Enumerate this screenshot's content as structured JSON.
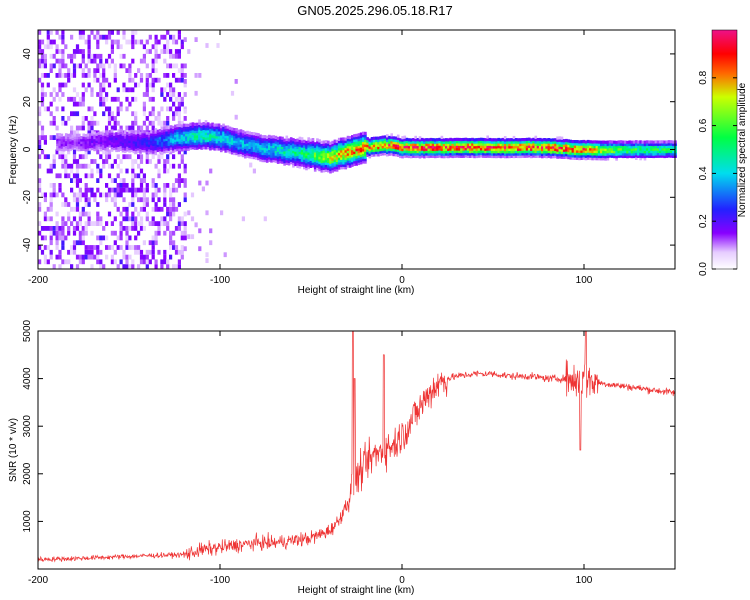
{
  "title": "GN05.2025.296.05.18.R17",
  "chart_data": [
    {
      "type": "heatmap",
      "xlabel": "Height of straight line (km)",
      "ylabel": "Frequency (Hz)",
      "xlim": [
        -200,
        150
      ],
      "ylim": [
        -50,
        50
      ],
      "xticks": [
        -200,
        -100,
        0,
        100
      ],
      "yticks": [
        -40,
        -20,
        0,
        20,
        40
      ],
      "colorbar": {
        "label": "Normalized spectral amplitude",
        "range": [
          0,
          1
        ],
        "ticks": [
          "0.0",
          "0.2",
          "0.4",
          "0.6",
          "0.8"
        ],
        "tick_values": [
          0.0,
          0.2,
          0.4,
          0.6,
          0.8
        ],
        "colormap": "white-violet-blue-cyan-green-yellow-red-magenta"
      },
      "ridge": {
        "x": [
          -180,
          -160,
          -140,
          -125,
          -110,
          -100,
          -90,
          -80,
          -70,
          -60,
          -50,
          -40,
          -35,
          -30,
          -25,
          -20,
          -10,
          0,
          10,
          20,
          40,
          60,
          80,
          100,
          120,
          150
        ],
        "freq": [
          3,
          4,
          3,
          5,
          6,
          5,
          3,
          1,
          0,
          -1,
          -2,
          -3,
          -2,
          -1,
          0,
          1,
          2,
          1,
          1,
          1,
          1,
          1,
          1,
          0,
          0,
          0
        ],
        "amplitude": [
          0.15,
          0.2,
          0.25,
          0.4,
          0.5,
          0.45,
          0.4,
          0.4,
          0.45,
          0.5,
          0.6,
          0.75,
          0.8,
          0.85,
          0.88,
          0.9,
          0.92,
          0.94,
          0.95,
          0.95,
          0.95,
          0.95,
          0.95,
          0.9,
          0.6,
          0.55
        ]
      },
      "noise_region_x": [
        -200,
        -120
      ]
    },
    {
      "type": "line",
      "xlabel": "Height of straight line (km)",
      "ylabel": "SNR (10 * v/v)",
      "xlim": [
        -200,
        150
      ],
      "ylim": [
        0,
        5000
      ],
      "xticks": [
        -200,
        -100,
        0,
        100
      ],
      "yticks": [
        1000,
        2000,
        3000,
        4000,
        5000
      ],
      "color": "#ee3333",
      "series": [
        {
          "name": "SNR",
          "x": [
            -200,
            -180,
            -160,
            -140,
            -120,
            -110,
            -100,
            -90,
            -80,
            -70,
            -60,
            -50,
            -40,
            -35,
            -30,
            -28,
            -25,
            -20,
            -15,
            -10,
            -5,
            0,
            5,
            10,
            15,
            20,
            25,
            30,
            40,
            50,
            60,
            70,
            80,
            90,
            95,
            100,
            105,
            110,
            120,
            130,
            140,
            150
          ],
          "y": [
            200,
            220,
            250,
            280,
            300,
            400,
            450,
            500,
            550,
            550,
            600,
            650,
            800,
            1000,
            1400,
            1600,
            1900,
            2200,
            2400,
            2500,
            2600,
            2800,
            3100,
            3400,
            3700,
            3900,
            4000,
            4050,
            4100,
            4100,
            4050,
            4050,
            4000,
            4000,
            3950,
            4000,
            3950,
            3900,
            3850,
            3800,
            3750,
            3700
          ]
        }
      ],
      "spikes": [
        {
          "x": -27,
          "y": 5000
        },
        {
          "x": -26,
          "y": 4000
        },
        {
          "x": -10,
          "y": 4500
        },
        {
          "x": 101,
          "y": 5000
        },
        {
          "x": 98,
          "y": 2500
        }
      ]
    }
  ]
}
